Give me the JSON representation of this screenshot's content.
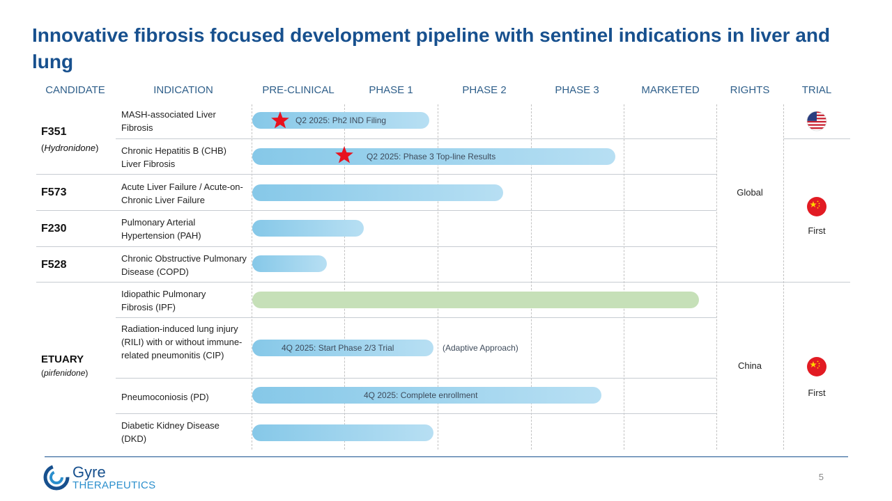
{
  "title": "Innovative fibrosis focused development pipeline with sentinel indications in liver and lung",
  "headers": {
    "candidate": "CANDIDATE",
    "indication": "INDICATION",
    "preclinical": "PRE-CLINICAL",
    "phase1": "PHASE 1",
    "phase2": "PHASE 2",
    "phase3": "PHASE 3",
    "marketed": "MARKETED",
    "rights": "RIGHTS",
    "trial": "TRIAL"
  },
  "candidates": {
    "f351": {
      "name": "F351",
      "sub": "Hydronidone"
    },
    "f573": {
      "name": "F573"
    },
    "f230": {
      "name": "F230"
    },
    "f528": {
      "name": "F528"
    },
    "etuary": {
      "name": "ETUARY",
      "sub": "pirfenidone"
    }
  },
  "rows": [
    {
      "indication": "MASH-associated Liver Fibrosis",
      "progress_stage": 1.9,
      "milestone": "Q2 2025: Ph2 IND Filing",
      "star": true
    },
    {
      "indication": "Chronic Hepatitis B (CHB) Liver Fibrosis",
      "progress_stage": 3.9,
      "milestone": "Q2 2025: Phase 3 Top-line Results",
      "star": true
    },
    {
      "indication": "Acute Liver Failure / Acute-on-Chronic Liver Failure",
      "progress_stage": 2.7,
      "milestone": ""
    },
    {
      "indication": "Pulmonary Arterial Hypertension (PAH)",
      "progress_stage": 1.2,
      "milestone": ""
    },
    {
      "indication": "Chronic Obstructive Pulmonary Disease (COPD)",
      "progress_stage": 0.8,
      "milestone": ""
    },
    {
      "indication": "Idiopathic Pulmonary Fibrosis (IPF)",
      "progress_stage": 4.8,
      "milestone": "",
      "color": "#c6e0b8"
    },
    {
      "indication": "Radiation-induced lung injury (RILI) with or without immune-related pneumonitis (CIP)",
      "progress_stage": 1.95,
      "milestone": "4Q 2025: Start Phase 2/3 Trial",
      "note": "(Adaptive Approach)"
    },
    {
      "indication": "Pneumoconiosis (PD)",
      "progress_stage": 3.75,
      "milestone": "4Q 2025: Complete enrollment"
    },
    {
      "indication": "Diabetic Kidney Disease (DKD)",
      "progress_stage": 1.95,
      "milestone": ""
    }
  ],
  "rights": {
    "global": "Global",
    "china": "China"
  },
  "trial": {
    "us_flag": "us-flag-icon",
    "cn_flag": "china-flag-icon",
    "first_label_1": "First",
    "first_label_2": "First"
  },
  "colors": {
    "title": "#17508e",
    "bar": "#86c8e8",
    "bar_green": "#c6e0b8",
    "star": "#e8121e"
  },
  "footer": {
    "brand_top": "Gyre",
    "brand_bottom": "THERAPEUTICS",
    "page_number": "5"
  }
}
